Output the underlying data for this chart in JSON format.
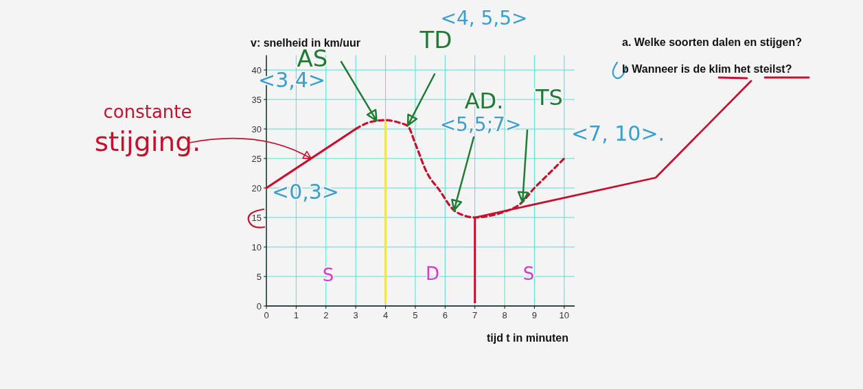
{
  "chart_data": {
    "type": "line",
    "ylabel": "v: snelheid in km/uur",
    "xlabel": "tijd t in minuten",
    "xlim": [
      0,
      10.35
    ],
    "ylim": [
      0,
      42.5
    ],
    "xticks": [
      0,
      1,
      2,
      3,
      4,
      5,
      6,
      7,
      8,
      9,
      10
    ],
    "yticks": [
      0,
      5,
      10,
      15,
      20,
      25,
      30,
      35,
      40
    ],
    "grid": true,
    "series": [
      {
        "color": "#c8102e",
        "line_style": "solid",
        "x": [
          0,
          3
        ],
        "values": [
          20,
          30
        ]
      },
      {
        "color": "#c8102e",
        "line_style": "dashed",
        "x": [
          3,
          3.5,
          4,
          4.5,
          4.75,
          5,
          5.4,
          5.8,
          6.3,
          6.6,
          7,
          7.5,
          8,
          8.5,
          9,
          9.5,
          10
        ],
        "values": [
          30,
          31.2,
          31.5,
          31,
          30.5,
          27.5,
          22.5,
          19.7,
          16.2,
          15.4,
          15,
          15.3,
          16,
          17.2,
          20,
          22.5,
          25
        ]
      }
    ],
    "ref_lines": [
      {
        "axis": "x",
        "value": 4,
        "color": "#f2e34a"
      },
      {
        "axis": "x",
        "value": 7,
        "color": "#c8102e"
      }
    ],
    "annotations": [
      {
        "text": "AS",
        "x": 3.7,
        "y": 31.4
      },
      "<3,4>",
      "<0,3>",
      {
        "text": "AD.",
        "x": 6.3,
        "y": 16.2
      },
      "<5,5;7>",
      {
        "text": "TS",
        "x": 8.6,
        "y": 17.6
      },
      "S",
      "D",
      "S",
      {
        "text": "constante stijging.",
        "x": 1.5,
        "y": 25
      },
      {
        "text": "TD",
        "x": 4.75,
        "y": 30.6
      },
      "<4, 5,5>",
      "<7, 10>.",
      "a. Welke soorten dalen en stijgen?",
      {
        "text": "b Wanneer is de klim het steilst?",
        "x": 7,
        "y": 15
      }
    ]
  }
}
